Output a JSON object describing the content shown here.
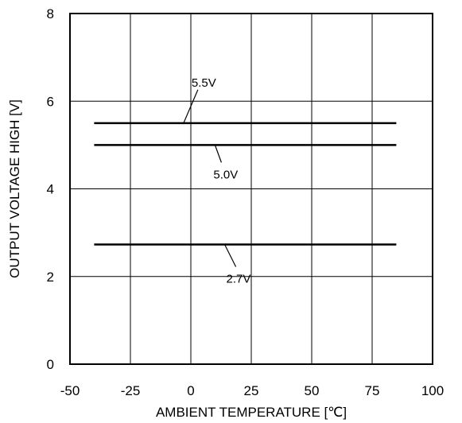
{
  "chart_data": {
    "type": "line",
    "xlabel": "AMBIENT TEMPERATURE [℃]",
    "ylabel": "OUTPUT VOLTAGE HIGH [V]",
    "xlim": [
      -50,
      100
    ],
    "ylim": [
      0,
      8
    ],
    "xticks": [
      -50,
      -25,
      0,
      25,
      50,
      75,
      100
    ],
    "xtick_labels": [
      "-50",
      "-25",
      "0",
      "25",
      "50",
      "75",
      "100"
    ],
    "yticks": [
      0,
      2,
      4,
      6,
      8
    ],
    "ytick_labels": [
      "0",
      "2",
      "4",
      "6",
      "8"
    ],
    "grid": true,
    "series": [
      {
        "name": "5.5V",
        "x": [
          -40,
          85
        ],
        "y": [
          5.5,
          5.5
        ]
      },
      {
        "name": "5.0V",
        "x": [
          -40,
          85
        ],
        "y": [
          5.0,
          5.0
        ]
      },
      {
        "name": "2.7V",
        "x": [
          -40,
          85
        ],
        "y": [
          2.73,
          2.73
        ]
      }
    ]
  }
}
